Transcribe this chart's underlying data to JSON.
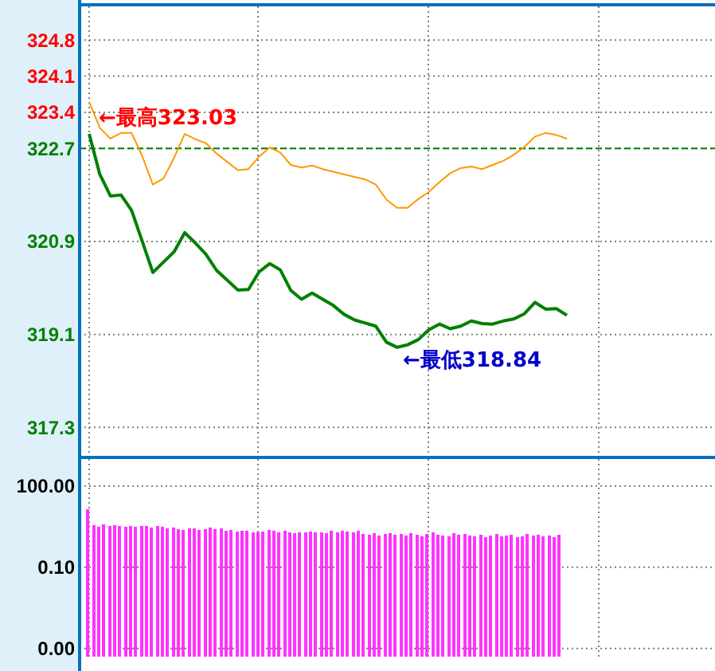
{
  "chart_data": [
    {
      "type": "line",
      "categories": [
        null,
        null,
        null,
        null,
        null,
        null,
        null,
        null,
        null,
        null,
        null,
        null,
        null,
        null,
        null,
        null,
        null,
        null,
        null,
        null,
        null,
        null,
        null,
        null,
        null,
        null,
        null,
        null,
        null,
        null,
        null,
        null,
        null,
        null,
        null,
        null,
        null,
        null,
        null,
        null,
        null,
        null,
        null,
        null,
        null,
        null
      ],
      "ylim": [
        316.75,
        325.45
      ],
      "yticks": [
        317.3,
        319.1,
        320.9,
        322.7,
        323.4,
        324.1,
        324.8
      ],
      "tick_labels": "y",
      "grid": true,
      "series": [
        {
          "color": "#008000",
          "values": [
            322.98,
            322.2,
            321.78,
            321.8,
            321.5,
            320.9,
            320.3,
            320.5,
            320.7,
            321.07,
            320.87,
            320.65,
            320.34,
            320.15,
            319.96,
            319.97,
            320.31,
            320.47,
            320.35,
            319.95,
            319.78,
            319.9,
            319.78,
            319.66,
            319.49,
            319.38,
            319.32,
            319.26,
            318.95,
            318.85,
            318.9,
            319.0,
            319.19,
            319.3,
            319.21,
            319.26,
            319.36,
            319.31,
            319.3,
            319.36,
            319.4,
            319.5,
            319.72,
            319.59,
            319.6,
            319.47
          ]
        },
        {
          "color": "#ff9900",
          "values": [
            323.6,
            323.1,
            322.89,
            323.0,
            323.0,
            322.55,
            322.0,
            322.12,
            322.52,
            322.98,
            322.88,
            322.8,
            322.6,
            322.44,
            322.28,
            322.3,
            322.54,
            322.72,
            322.62,
            322.38,
            322.33,
            322.37,
            322.3,
            322.25,
            322.2,
            322.15,
            322.1,
            322.0,
            321.71,
            321.55,
            321.55,
            321.72,
            321.86,
            322.05,
            322.22,
            322.32,
            322.35,
            322.3,
            322.38,
            322.46,
            322.58,
            322.73,
            322.93,
            323.0,
            322.96,
            322.89
          ]
        }
      ],
      "ref_lines": [
        {
          "axis": "y",
          "value": 322.7,
          "color": "#008000",
          "line_style": "dashed"
        }
      ],
      "annotations": [
        "←最高323.03",
        "←最低318.84"
      ]
    },
    {
      "type": "bar",
      "log": "y",
      "categories": [
        null,
        null,
        null,
        null,
        null,
        null,
        null,
        null,
        null,
        null,
        null,
        null,
        null,
        null,
        null,
        null,
        null,
        null,
        null,
        null,
        null,
        null,
        null,
        null,
        null,
        null,
        null,
        null,
        null,
        null,
        null,
        null,
        null,
        null,
        null,
        null,
        null,
        null,
        null,
        null,
        null,
        null,
        null,
        null,
        null,
        null,
        null,
        null,
        null,
        null,
        null,
        null,
        null,
        null,
        null,
        null,
        null,
        null,
        null,
        null,
        null,
        null,
        null,
        null,
        null,
        null,
        null,
        null,
        null,
        null,
        null,
        null,
        null,
        null,
        null,
        null,
        null,
        null,
        null,
        null,
        null,
        null,
        null,
        null,
        null,
        null,
        null,
        null,
        null,
        null,
        null,
        null,
        null,
        null,
        null,
        null,
        null,
        null,
        null,
        null,
        null,
        null,
        null,
        null,
        null,
        null,
        null,
        null,
        null,
        null,
        null,
        null,
        null,
        null,
        null,
        null,
        null,
        null,
        null,
        null
      ],
      "ylim": [
        5e-05,
        1000
      ],
      "yticks": [
        {
          "value": 0.0001,
          "label": "0.00"
        },
        {
          "value": 0.1,
          "label": "0.10"
        },
        {
          "value": 100,
          "label": "100.00"
        }
      ],
      "tick_labels": "y",
      "grid": true,
      "series": [
        {
          "color": "#ff33ff",
          "values": [
            null,
            13.7,
            3.5,
            3.2,
            3.8,
            3.3,
            3.6,
            3.4,
            3.1,
            3.3,
            3.2,
            3.4,
            3.3,
            3.0,
            3.3,
            3.1,
            2.8,
            2.9,
            2.6,
            2.4,
            2.8,
            2.7,
            2.4,
            2.6,
            2.9,
            2.5,
            2.7,
            2.3,
            2.4,
            2.1,
            2.3,
            2.2,
            1.9,
            2.0,
            2.1,
            2.4,
            2.2,
            1.9,
            2.3,
            2.0,
            1.8,
            1.9,
            2.0,
            2.1,
            1.9,
            2.0,
            1.8,
            2.2,
            2.0,
            2.3,
            2.1,
            1.9,
            2.2,
            1.7,
            1.6,
            1.8,
            1.5,
            1.7,
            1.8,
            1.6,
            1.7,
            1.5,
            1.8,
            1.6,
            1.4,
            1.7,
            1.9,
            1.6,
            1.5,
            1.4,
            1.8,
            1.6,
            1.7,
            1.5,
            1.4,
            1.6,
            1.3,
            1.5,
            1.7,
            1.4,
            1.5,
            1.6,
            1.3,
            1.4,
            1.7,
            1.5,
            1.6,
            1.4,
            1.5,
            1.3,
            1.6,
            null,
            null,
            null,
            null,
            null,
            null,
            null,
            null,
            null,
            null,
            null,
            null,
            null,
            null,
            null,
            null,
            null,
            null,
            null,
            null,
            null,
            null,
            null,
            null,
            null,
            null,
            null,
            null,
            null
          ]
        }
      ]
    }
  ]
}
